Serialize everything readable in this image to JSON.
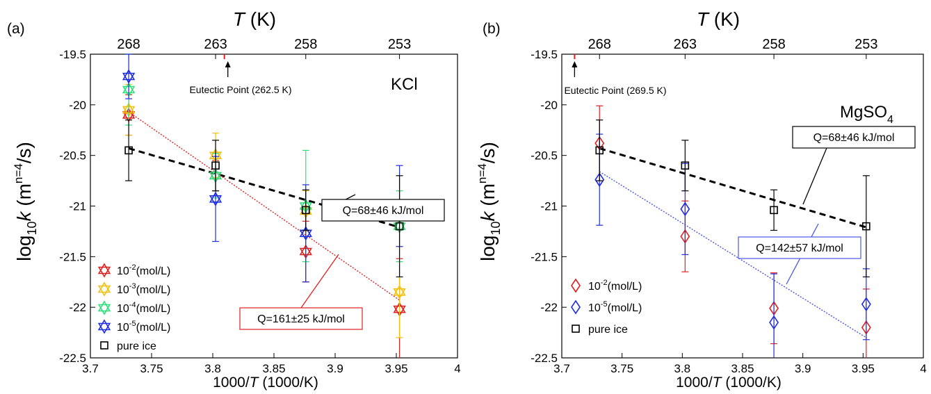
{
  "chart_data": [
    {
      "panel_label": "(a)",
      "type": "scatter",
      "top_axis_label": "T (K)",
      "top_ticks": [
        {
          "label": "268",
          "x": 3.7313
        },
        {
          "label": "263",
          "x": 3.8023
        },
        {
          "label": "258",
          "x": 3.876
        },
        {
          "label": "253",
          "x": 3.9526
        }
      ],
      "xlabel": "1000/T (1000/K)",
      "ylabel": "log10k (m^n=4/s)",
      "xlim": [
        3.7,
        4.0
      ],
      "ylim": [
        -22.5,
        -19.5
      ],
      "xticks": [
        3.7,
        3.75,
        3.8,
        3.85,
        3.9,
        3.95,
        4.0
      ],
      "xtick_labels": [
        "3.7",
        "3.75",
        "3.8",
        "3.85",
        "3.9",
        "3.95",
        "4"
      ],
      "yticks": [
        -22.5,
        -22,
        -21.5,
        -21,
        -20.5,
        -20,
        -19.5
      ],
      "ytick_labels": [
        "-22.5",
        "-22",
        "-21.5",
        "-21",
        "-20.5",
        "-20",
        "-19.5"
      ],
      "salt_label": "KCl",
      "eutectic": {
        "label": "Eutectic Point (262.5 K)",
        "x": 3.8095
      },
      "legend": {
        "placement": "bottom-left"
      },
      "series": [
        {
          "name": "10-2(mol/L)",
          "base": "10",
          "exp": "-2",
          "unit": "(mol/L)",
          "marker": "hexagram",
          "color": "#e02020",
          "points": [
            {
              "x": 3.7313,
              "y": -20.1,
              "err": 0.2
            },
            {
              "x": 3.8023,
              "y": -20.7,
              "err": 0.15
            },
            {
              "x": 3.876,
              "y": -21.45,
              "err": 0.3
            },
            {
              "x": 3.9526,
              "y": -22.02,
              "err": 0.5
            }
          ]
        },
        {
          "name": "10-3(mol/L)",
          "base": "10",
          "exp": "-3",
          "unit": "(mol/L)",
          "marker": "hexagram",
          "color": "#f2c00e",
          "points": [
            {
              "x": 3.7313,
              "y": -20.05,
              "err": 0.25
            },
            {
              "x": 3.8023,
              "y": -20.5,
              "err": 0.22
            },
            {
              "x": 3.876,
              "y": -21.05,
              "err": 0.2
            },
            {
              "x": 3.9526,
              "y": -21.85,
              "err": 0.45
            }
          ]
        },
        {
          "name": "10-4(mol/L)",
          "base": "10",
          "exp": "-4",
          "unit": "(mol/L)",
          "marker": "hexagram",
          "color": "#2ee07a",
          "points": [
            {
              "x": 3.7313,
              "y": -19.85,
              "err": 0.35
            },
            {
              "x": 3.8023,
              "y": -20.7,
              "err": 0.22
            },
            {
              "x": 3.876,
              "y": -21.0,
              "err": 0.55
            },
            {
              "x": 3.9526,
              "y": -21.2,
              "err": 0.35
            }
          ]
        },
        {
          "name": "10-5(mol/L)",
          "base": "10",
          "exp": "-5",
          "unit": "(mol/L)",
          "marker": "hexagram",
          "color": "#1f2ee0",
          "points": [
            {
              "x": 3.7313,
              "y": -19.72,
              "err": 0.22
            },
            {
              "x": 3.8023,
              "y": -20.93,
              "err": 0.42
            },
            {
              "x": 3.876,
              "y": -21.27,
              "err": 0.48
            },
            {
              "x": 3.9526,
              "y": -21.0,
              "err": 0.4
            }
          ]
        },
        {
          "name": "pure ice",
          "marker": "square",
          "color": "#000000",
          "points": [
            {
              "x": 3.7313,
              "y": -20.45,
              "err": 0.3
            },
            {
              "x": 3.8023,
              "y": -20.6,
              "err": 0.25
            },
            {
              "x": 3.876,
              "y": -21.04,
              "err": 0.2
            },
            {
              "x": 3.9526,
              "y": -21.2,
              "err": 0.5
            }
          ]
        }
      ],
      "fits": [
        {
          "label": "Q=68±46 kJ/mol",
          "color": "#000000",
          "style": "dashed-thick",
          "x": [
            3.7313,
            3.9526
          ],
          "y": [
            -20.43,
            -21.21
          ]
        },
        {
          "label": "Q=161±25 kJ/mol",
          "color": "#e02020",
          "style": "dotted",
          "x": [
            3.7313,
            3.9526
          ],
          "y": [
            -20.07,
            -21.93
          ]
        }
      ]
    },
    {
      "panel_label": "(b)",
      "type": "scatter",
      "top_axis_label": "T (K)",
      "top_ticks": [
        {
          "label": "268",
          "x": 3.7313
        },
        {
          "label": "263",
          "x": 3.8023
        },
        {
          "label": "258",
          "x": 3.876
        },
        {
          "label": "253",
          "x": 3.9526
        }
      ],
      "xlabel": "1000/T (1000/K)",
      "ylabel": "log10k (m^n=4/s)",
      "xlim": [
        3.7,
        4.0
      ],
      "ylim": [
        -22.5,
        -19.5
      ],
      "xticks": [
        3.7,
        3.75,
        3.8,
        3.85,
        3.9,
        3.95,
        4.0
      ],
      "xtick_labels": [
        "3.7",
        "3.75",
        "3.8",
        "3.85",
        "3.9",
        "3.95",
        "4"
      ],
      "yticks": [
        -22.5,
        -22,
        -21.5,
        -21,
        -20.5,
        -20,
        -19.5
      ],
      "ytick_labels": [
        "-22.5",
        "-22",
        "-21.5",
        "-21",
        "-20.5",
        "-20",
        "-19.5"
      ],
      "salt_label": "MgSO4",
      "salt_base": "MgSO",
      "salt_sub": "4",
      "eutectic": {
        "label": "Eutectic Point (269.5 K)",
        "x": 3.7106
      },
      "legend": {
        "placement": "bottom-left"
      },
      "series": [
        {
          "name": "10-2(mol/L)",
          "base": "10",
          "exp": "-2",
          "unit": "(mol/L)",
          "marker": "diamond",
          "color": "#e02020",
          "points": [
            {
              "x": 3.7313,
              "y": -20.38,
              "err": 0.37
            },
            {
              "x": 3.8023,
              "y": -21.3,
              "err": 0.35
            },
            {
              "x": 3.876,
              "y": -22.01,
              "err": 0.35
            },
            {
              "x": 3.9526,
              "y": -22.2,
              "err": 0.38
            }
          ]
        },
        {
          "name": "10-5(mol/L)",
          "base": "10",
          "exp": "-5",
          "unit": "(mol/L)",
          "marker": "diamond",
          "color": "#1f2ee0",
          "points": [
            {
              "x": 3.7313,
              "y": -20.74,
              "err": 0.45
            },
            {
              "x": 3.8023,
              "y": -21.03,
              "err": 0.45
            },
            {
              "x": 3.876,
              "y": -22.15,
              "err": 0.48
            },
            {
              "x": 3.9526,
              "y": -21.97,
              "err": 0.35
            }
          ]
        },
        {
          "name": "pure ice",
          "marker": "square",
          "color": "#000000",
          "points": [
            {
              "x": 3.7313,
              "y": -20.45,
              "err": 0.3
            },
            {
              "x": 3.8023,
              "y": -20.6,
              "err": 0.25
            },
            {
              "x": 3.876,
              "y": -21.04,
              "err": 0.2
            },
            {
              "x": 3.9526,
              "y": -21.2,
              "err": 0.5
            }
          ]
        }
      ],
      "fits": [
        {
          "label": "Q=68±46 kJ/mol",
          "color": "#000000",
          "style": "dashed-thick",
          "x": [
            3.7313,
            3.9526
          ],
          "y": [
            -20.43,
            -21.21
          ]
        },
        {
          "label": "Q=142±57 kJ/mol",
          "color": "#4a56e8",
          "style": "dotted",
          "x": [
            3.7313,
            3.9526
          ],
          "y": [
            -20.66,
            -22.3
          ]
        }
      ]
    }
  ]
}
